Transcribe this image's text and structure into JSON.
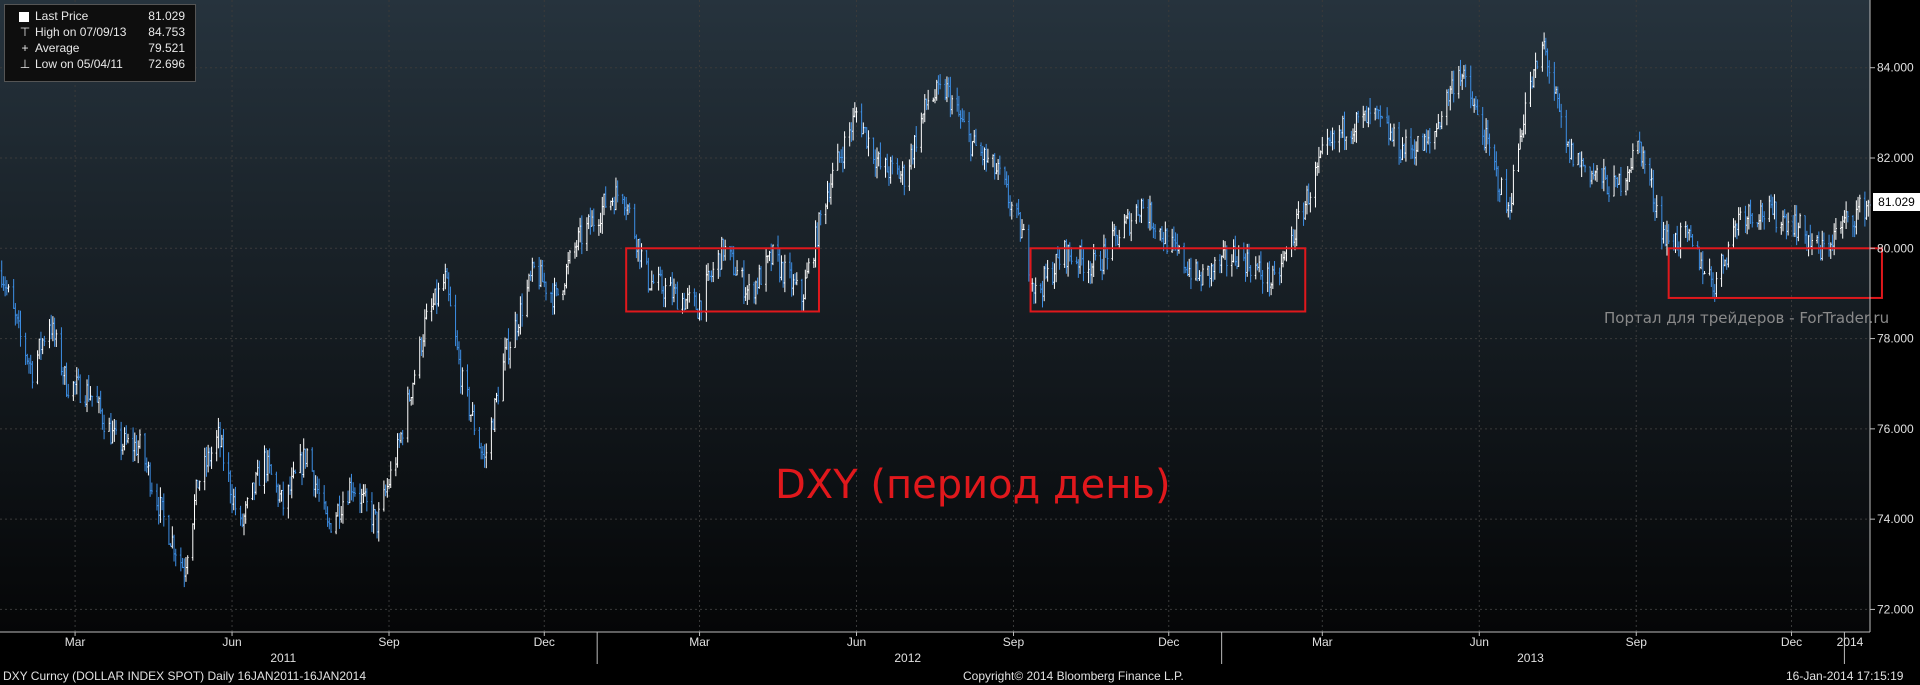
{
  "legend": {
    "last_price_label": "Last Price",
    "last_price_value": "81.029",
    "high_label": "High on 07/09/13",
    "high_value": "84.753",
    "average_label": "Average",
    "average_value": "79.521",
    "low_label": "Low on 05/04/11",
    "low_value": "72.696"
  },
  "annotation": "DXY (период день)",
  "watermark": "Портал для трейдеров - ForTrader.ru",
  "footer": {
    "left": "DXY Curncy (DOLLAR INDEX SPOT)  Daily 16JAN2011-16JAN2014",
    "center": "Copyright© 2014 Bloomberg Finance L.P.",
    "right": "16-Jan-2014 17:15:19"
  },
  "colors": {
    "background": "#000000",
    "up_candle": "#ffffff",
    "down_candle": "#3d8fe6",
    "box": "#e0181c",
    "grid": "#3a3a3a"
  },
  "chart_data": {
    "type": "candlestick",
    "title": "",
    "xlabel": "",
    "ylabel": "",
    "ylim": [
      71.5,
      85.5
    ],
    "yticks": [
      "72.000",
      "74.000",
      "76.000",
      "78.000",
      "80.000",
      "82.000",
      "84.000"
    ],
    "x_range": [
      "2011-01-16",
      "2014-01-16"
    ],
    "x_month_ticks": [
      {
        "label": "Mar",
        "date": "2011-03-01"
      },
      {
        "label": "Jun",
        "date": "2011-06-01"
      },
      {
        "label": "Sep",
        "date": "2011-09-01"
      },
      {
        "label": "Dec",
        "date": "2011-12-01"
      },
      {
        "label": "Mar",
        "date": "2012-03-01"
      },
      {
        "label": "Jun",
        "date": "2012-06-01"
      },
      {
        "label": "Sep",
        "date": "2012-09-01"
      },
      {
        "label": "Dec",
        "date": "2012-12-01"
      },
      {
        "label": "Mar",
        "date": "2013-03-01"
      },
      {
        "label": "Jun",
        "date": "2013-06-01"
      },
      {
        "label": "Sep",
        "date": "2013-09-01"
      },
      {
        "label": "Dec",
        "date": "2013-12-01"
      }
    ],
    "x_year_ticks": [
      {
        "label": "2011",
        "date": "2011-07-01"
      },
      {
        "label": "2012",
        "date": "2012-07-01"
      },
      {
        "label": "2013",
        "date": "2013-07-01"
      },
      {
        "label": "2014",
        "date": "2014-01-01"
      }
    ],
    "x_year_boundaries": [
      "2012-01-01",
      "2013-01-01",
      "2014-01-01"
    ],
    "close_path": [
      {
        "date": "2011-01-17",
        "value": 79.5
      },
      {
        "date": "2011-01-28",
        "value": 78.0
      },
      {
        "date": "2011-02-04",
        "value": 77.3
      },
      {
        "date": "2011-02-14",
        "value": 78.4
      },
      {
        "date": "2011-02-24",
        "value": 77.0
      },
      {
        "date": "2011-03-10",
        "value": 76.8
      },
      {
        "date": "2011-03-25",
        "value": 75.7
      },
      {
        "date": "2011-04-08",
        "value": 75.6
      },
      {
        "date": "2011-04-22",
        "value": 74.0
      },
      {
        "date": "2011-05-04",
        "value": 72.9
      },
      {
        "date": "2011-05-12",
        "value": 74.8
      },
      {
        "date": "2011-05-24",
        "value": 75.8
      },
      {
        "date": "2011-06-06",
        "value": 73.8
      },
      {
        "date": "2011-06-20",
        "value": 75.3
      },
      {
        "date": "2011-07-01",
        "value": 74.3
      },
      {
        "date": "2011-07-15",
        "value": 75.5
      },
      {
        "date": "2011-07-27",
        "value": 73.8
      },
      {
        "date": "2011-08-10",
        "value": 74.8
      },
      {
        "date": "2011-08-25",
        "value": 73.9
      },
      {
        "date": "2011-09-06",
        "value": 75.5
      },
      {
        "date": "2011-09-22",
        "value": 78.3
      },
      {
        "date": "2011-10-04",
        "value": 79.3
      },
      {
        "date": "2011-10-14",
        "value": 77.0
      },
      {
        "date": "2011-10-27",
        "value": 75.3
      },
      {
        "date": "2011-11-08",
        "value": 77.6
      },
      {
        "date": "2011-11-25",
        "value": 79.5
      },
      {
        "date": "2011-12-08",
        "value": 78.9
      },
      {
        "date": "2011-12-20",
        "value": 80.1
      },
      {
        "date": "2012-01-06",
        "value": 81.0
      },
      {
        "date": "2012-01-16",
        "value": 81.3
      },
      {
        "date": "2012-01-31",
        "value": 79.3
      },
      {
        "date": "2012-02-14",
        "value": 79.0
      },
      {
        "date": "2012-02-29",
        "value": 78.7
      },
      {
        "date": "2012-03-15",
        "value": 80.0
      },
      {
        "date": "2012-03-30",
        "value": 79.0
      },
      {
        "date": "2012-04-13",
        "value": 79.8
      },
      {
        "date": "2012-04-30",
        "value": 78.9
      },
      {
        "date": "2012-05-15",
        "value": 81.3
      },
      {
        "date": "2012-06-01",
        "value": 83.0
      },
      {
        "date": "2012-06-15",
        "value": 81.8
      },
      {
        "date": "2012-06-29",
        "value": 81.6
      },
      {
        "date": "2012-07-13",
        "value": 83.3
      },
      {
        "date": "2012-07-24",
        "value": 83.5
      },
      {
        "date": "2012-08-06",
        "value": 82.4
      },
      {
        "date": "2012-08-24",
        "value": 81.6
      },
      {
        "date": "2012-09-07",
        "value": 80.2
      },
      {
        "date": "2012-09-14",
        "value": 79.0
      },
      {
        "date": "2012-10-01",
        "value": 79.9
      },
      {
        "date": "2012-10-19",
        "value": 79.6
      },
      {
        "date": "2012-11-02",
        "value": 80.3
      },
      {
        "date": "2012-11-15",
        "value": 81.0
      },
      {
        "date": "2012-12-03",
        "value": 80.0
      },
      {
        "date": "2012-12-19",
        "value": 79.3
      },
      {
        "date": "2013-01-10",
        "value": 79.9
      },
      {
        "date": "2013-02-01",
        "value": 79.2
      },
      {
        "date": "2013-02-15",
        "value": 80.6
      },
      {
        "date": "2013-03-01",
        "value": 82.0
      },
      {
        "date": "2013-03-15",
        "value": 82.7
      },
      {
        "date": "2013-04-01",
        "value": 82.9
      },
      {
        "date": "2013-04-16",
        "value": 82.2
      },
      {
        "date": "2013-05-03",
        "value": 82.3
      },
      {
        "date": "2013-05-20",
        "value": 84.0
      },
      {
        "date": "2013-06-03",
        "value": 82.6
      },
      {
        "date": "2013-06-18",
        "value": 80.8
      },
      {
        "date": "2013-06-28",
        "value": 83.2
      },
      {
        "date": "2013-07-09",
        "value": 84.5
      },
      {
        "date": "2013-07-22",
        "value": 82.2
      },
      {
        "date": "2013-08-05",
        "value": 81.7
      },
      {
        "date": "2013-08-20",
        "value": 81.3
      },
      {
        "date": "2013-09-03",
        "value": 82.3
      },
      {
        "date": "2013-09-18",
        "value": 80.2
      },
      {
        "date": "2013-10-01",
        "value": 80.2
      },
      {
        "date": "2013-10-17",
        "value": 79.2
      },
      {
        "date": "2013-11-01",
        "value": 80.8
      },
      {
        "date": "2013-11-15",
        "value": 80.8
      },
      {
        "date": "2013-12-02",
        "value": 80.6
      },
      {
        "date": "2013-12-18",
        "value": 79.9
      },
      {
        "date": "2014-01-02",
        "value": 80.6
      },
      {
        "date": "2014-01-16",
        "value": 81.029
      }
    ],
    "range_boxes": [
      {
        "from": "2012-01-18",
        "to": "2012-05-10",
        "low": 78.6,
        "high": 80.0
      },
      {
        "from": "2012-09-11",
        "to": "2013-02-19",
        "low": 78.6,
        "high": 80.0
      },
      {
        "from": "2013-09-20",
        "to": "2014-01-23",
        "low": 78.9,
        "high": 80.0
      }
    ],
    "last_price": 81.029
  }
}
